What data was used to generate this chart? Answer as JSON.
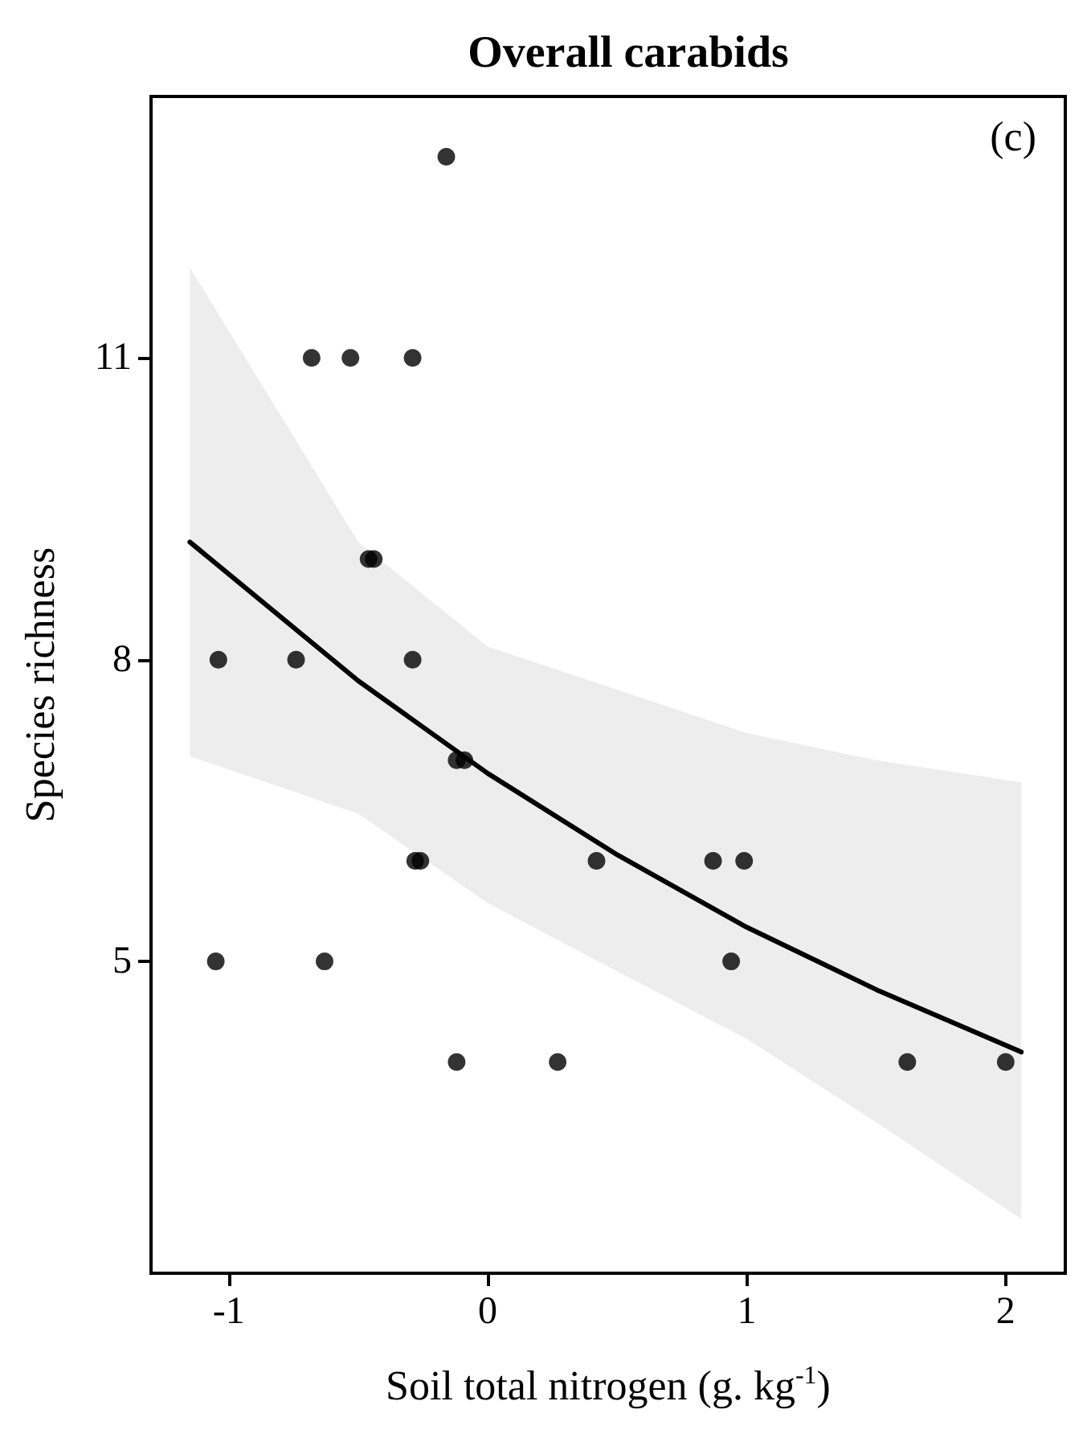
{
  "chart_data": {
    "type": "scatter",
    "title": "Overall carabids",
    "xlabel": "Soil total nitrogen (g. kg$^{-1}$)",
    "ylabel": "Species richness",
    "annotations": [
      "(c)"
    ],
    "xlim": [
      -1.3,
      2.23
    ],
    "xticks": [
      -1,
      0,
      1,
      2
    ],
    "ylim": [
      1.9,
      13.6
    ],
    "yticks": [
      5,
      8,
      11
    ],
    "grid": false,
    "marker": "circle",
    "series": [
      {
        "color": "#000000",
        "x": [
          2.0,
          1.62,
          0.99,
          0.94,
          0.87,
          0.42,
          0.27,
          -0.16,
          -0.09,
          -0.12,
          -0.12,
          -0.29,
          -0.29,
          -0.26,
          -0.28,
          -0.46,
          -0.44,
          -0.53,
          -0.68,
          -0.63,
          -0.74,
          -1.04,
          -1.05
        ],
        "values": [
          4,
          4,
          6,
          5,
          6,
          6,
          4,
          13,
          7,
          7,
          4,
          11,
          8,
          6,
          6,
          9,
          9,
          11,
          11,
          5,
          8,
          8,
          5
        ]
      },
      {
        "type": "line",
        "color": "#000000",
        "marker": "none",
        "line_style": "solid",
        "x": [
          -1.15,
          -0.5,
          0,
          0.5,
          1,
          1.5,
          2.06
        ],
        "values": [
          9.17,
          7.79,
          6.87,
          6.06,
          5.34,
          4.72,
          4.1
        ],
        "lower": [
          7.04,
          6.47,
          5.58,
          4.9,
          4.23,
          3.4,
          2.44
        ],
        "upper": [
          11.9,
          9.17,
          8.13,
          7.7,
          7.27,
          7.0,
          6.78
        ]
      }
    ]
  }
}
